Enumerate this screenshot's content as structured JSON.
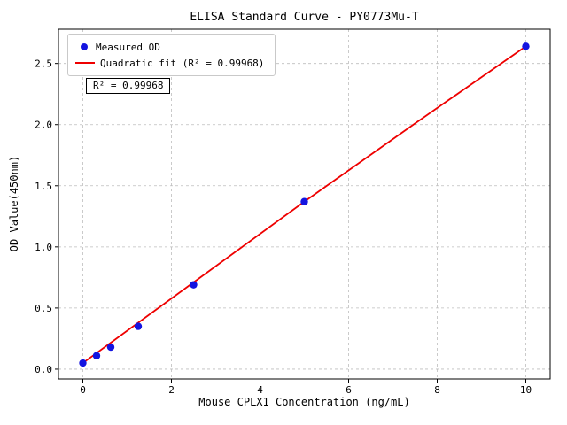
{
  "figure": {
    "title": "ELISA Standard Curve - PY0773Mu-T",
    "xlabel": "Mouse CPLX1 Concentration (ng/mL)",
    "ylabel": "OD Value(450nm)",
    "annotation": "R² = 0.99968",
    "legend": {
      "items": [
        {
          "label": "Measured OD",
          "marker": "dot",
          "color": "#1414e0"
        },
        {
          "label": "Quadratic fit (R² = 0.99968)",
          "marker": "line",
          "color": "#ee0000"
        }
      ]
    }
  },
  "chart_data": {
    "type": "scatter",
    "title": "ELISA Standard Curve - PY0773Mu-T",
    "xlabel": "Mouse CPLX1 Concentration (ng/mL)",
    "ylabel": "OD Value(450nm)",
    "points": [
      [
        0,
        0.05
      ],
      [
        0.31,
        0.11
      ],
      [
        0.63,
        0.18
      ],
      [
        1.25,
        0.35
      ],
      [
        2.5,
        0.69
      ],
      [
        5,
        1.37
      ],
      [
        10,
        2.64
      ]
    ],
    "fit": {
      "type": "quadratic",
      "r_squared": 0.99968,
      "label": "Quadratic fit (R² = 0.99968)"
    },
    "fit_line": {
      "x": [
        0,
        2.5,
        5,
        7.5,
        10
      ],
      "y": [
        0.05,
        0.71,
        1.37,
        2.01,
        2.64
      ]
    },
    "xlim": [
      -0.55,
      10.55
    ],
    "ylim": [
      -0.08,
      2.78
    ],
    "xticks": [
      0,
      2,
      4,
      6,
      8,
      10
    ],
    "xtick_labels": [
      "0",
      "2",
      "4",
      "6",
      "8",
      "10"
    ],
    "yticks": [
      0,
      0.5,
      1,
      1.5,
      2,
      2.5
    ],
    "ytick_labels": [
      "0.0",
      "0.5",
      "1.0",
      "1.5",
      "2.0",
      "2.5"
    ],
    "grid": true,
    "grid_style": "dashed",
    "legend_position": "upper left",
    "point_color": "#1414e0",
    "line_color": "#ee0000",
    "grid_color": "#bdbdbd",
    "annotation": "R² = 0.99968"
  }
}
